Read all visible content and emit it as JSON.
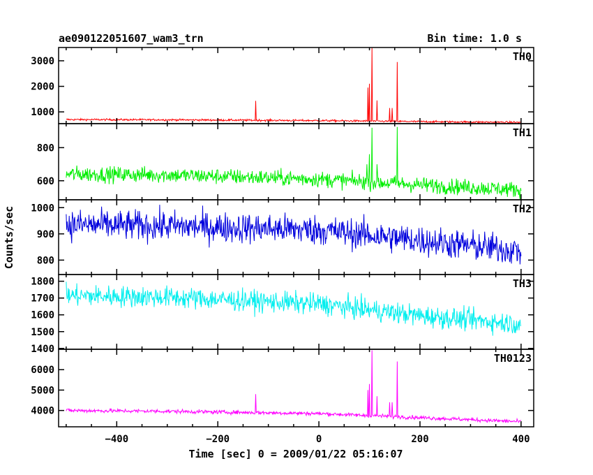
{
  "figure": {
    "title_left": "ae090122051607_wam3_trn",
    "title_right": "Bin time: 1.0 s",
    "ylabel": "Counts/sec",
    "xlabel": "Time [sec] 0 = 2009/01/22 05:16:07"
  },
  "chart_data": [
    {
      "type": "line",
      "name": "TH0",
      "color": "#ff0000",
      "xlim": [
        -515,
        425
      ],
      "ylim": [
        540,
        3520
      ],
      "yticks": [
        1000,
        2000,
        3000
      ],
      "ytick_labels": [
        "1000",
        "2000",
        "3000"
      ],
      "xticks": [
        -400,
        -200,
        0,
        200,
        400
      ],
      "baseline": {
        "x": [
          -500,
          -300,
          0,
          200,
          400
        ],
        "y": [
          700,
          690,
          660,
          620,
          590
        ]
      },
      "noise": 35,
      "spikes": [
        {
          "x": -125,
          "y": 1430
        },
        {
          "x": 97,
          "y": 1950
        },
        {
          "x": 100,
          "y": 2100
        },
        {
          "x": 105,
          "y": 3500
        },
        {
          "x": 115,
          "y": 1450
        },
        {
          "x": 140,
          "y": 1150
        },
        {
          "x": 145,
          "y": 1150
        },
        {
          "x": 155,
          "y": 2950
        }
      ]
    },
    {
      "type": "line",
      "name": "TH1",
      "color": "#00ee00",
      "xlim": [
        -515,
        425
      ],
      "ylim": [
        485,
        945
      ],
      "yticks": [
        600,
        800
      ],
      "ytick_labels": [
        "600",
        "800"
      ],
      "xticks": [
        -400,
        -200,
        0,
        200,
        400
      ],
      "baseline": {
        "x": [
          -500,
          -300,
          0,
          200,
          400
        ],
        "y": [
          640,
          635,
          610,
          575,
          545
        ]
      },
      "noise": 45,
      "spikes": [
        {
          "x": 95,
          "y": 700
        },
        {
          "x": 100,
          "y": 760
        },
        {
          "x": 105,
          "y": 920
        },
        {
          "x": 115,
          "y": 700
        },
        {
          "x": 155,
          "y": 925
        }
      ]
    },
    {
      "type": "line",
      "name": "TH2",
      "color": "#0000dd",
      "xlim": [
        -515,
        425
      ],
      "ylim": [
        745,
        1030
      ],
      "yticks": [
        800,
        900,
        1000
      ],
      "ytick_labels": [
        "800",
        "900",
        "1000"
      ],
      "xticks": [
        -400,
        -200,
        0,
        200,
        400
      ],
      "baseline": {
        "x": [
          -500,
          -300,
          0,
          200,
          400
        ],
        "y": [
          935,
          930,
          915,
          875,
          835
        ]
      },
      "noise": 55,
      "spikes": []
    },
    {
      "type": "line",
      "name": "TH3",
      "color": "#00eeee",
      "xlim": [
        -515,
        425
      ],
      "ylim": [
        1395,
        1840
      ],
      "yticks": [
        1400,
        1500,
        1600,
        1700,
        1800
      ],
      "ytick_labels": [
        "1400",
        "1500",
        "1600",
        "1700",
        "1800"
      ],
      "xticks": [
        -400,
        -200,
        0,
        200,
        400
      ],
      "baseline": {
        "x": [
          -500,
          -300,
          0,
          200,
          400
        ],
        "y": [
          1715,
          1705,
          1665,
          1595,
          1545
        ]
      },
      "noise": 60,
      "spikes": []
    },
    {
      "type": "line",
      "name": "TH0123",
      "color": "#ff00ff",
      "xlim": [
        -515,
        425
      ],
      "ylim": [
        3200,
        7000
      ],
      "yticks": [
        4000,
        5000,
        6000
      ],
      "ytick_labels": [
        "4000",
        "5000",
        "6000"
      ],
      "xticks": [
        -400,
        -200,
        0,
        200,
        400
      ],
      "xtick_labels": [
        "−400",
        "−200",
        "0",
        "200",
        "400"
      ],
      "baseline": {
        "x": [
          -500,
          -300,
          0,
          200,
          400
        ],
        "y": [
          4000,
          3960,
          3850,
          3650,
          3450
        ]
      },
      "noise": 90,
      "spikes": [
        {
          "x": -125,
          "y": 4800
        },
        {
          "x": 97,
          "y": 5000
        },
        {
          "x": 100,
          "y": 5300
        },
        {
          "x": 105,
          "y": 6950
        },
        {
          "x": 115,
          "y": 4700
        },
        {
          "x": 140,
          "y": 4400
        },
        {
          "x": 145,
          "y": 4400
        },
        {
          "x": 155,
          "y": 6400
        }
      ]
    }
  ]
}
